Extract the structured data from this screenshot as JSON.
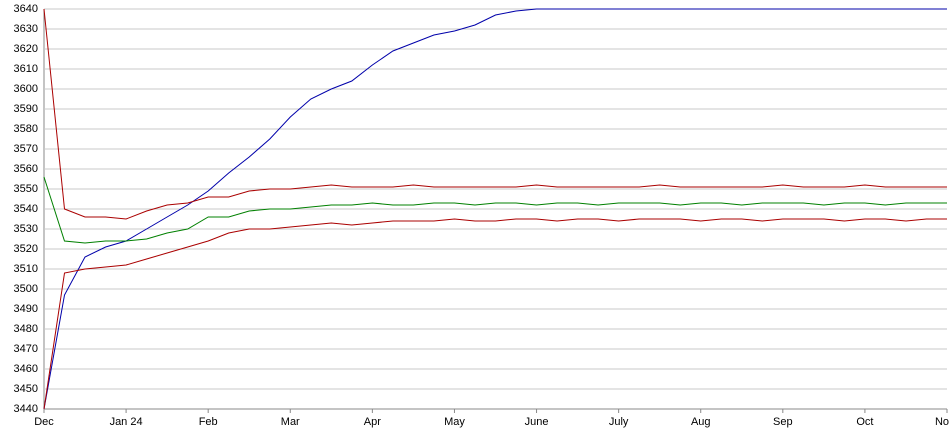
{
  "chart_data": {
    "type": "line",
    "categories": [
      "Dec",
      null,
      null,
      null,
      "Jan 24",
      null,
      null,
      null,
      "Feb",
      null,
      null,
      null,
      "Mar",
      null,
      null,
      null,
      "Apr",
      null,
      null,
      null,
      "May",
      null,
      null,
      null,
      "June",
      null,
      null,
      null,
      "July",
      null,
      null,
      null,
      "Aug",
      null,
      null,
      null,
      "Sep",
      null,
      null,
      null,
      "Oct",
      null,
      null,
      null,
      "No"
    ],
    "series": [
      {
        "color": "#0000aa",
        "values": [
          3440,
          3497,
          3516,
          3521,
          3524,
          3530,
          3536,
          3542,
          3549,
          3558,
          3566,
          3575,
          3586,
          3595,
          3600,
          3604,
          3612,
          3619,
          3623,
          3627,
          3629,
          3632,
          3637,
          3639,
          3640,
          3640,
          3640,
          3640,
          3640,
          3640,
          3640,
          3640,
          3640,
          3640,
          3640,
          3640,
          3640,
          3640,
          3640,
          3640,
          3640,
          3640,
          3640,
          3640,
          3640
        ]
      },
      {
        "color": "#aa0000",
        "values": [
          3640,
          3540,
          3536,
          3536,
          3535,
          3539,
          3542,
          3543,
          3546,
          3546,
          3549,
          3550,
          3550,
          3551,
          3552,
          3551,
          3551,
          3551,
          3552,
          3551,
          3551,
          3551,
          3551,
          3551,
          3552,
          3551,
          3551,
          3551,
          3551,
          3551,
          3552,
          3551,
          3551,
          3551,
          3551,
          3551,
          3552,
          3551,
          3551,
          3551,
          3552,
          3551,
          3551,
          3551,
          3551
        ]
      },
      {
        "color": "#008000",
        "values": [
          3556,
          3524,
          3523,
          3524,
          3524,
          3525,
          3528,
          3530,
          3536,
          3536,
          3539,
          3540,
          3540,
          3541,
          3542,
          3542,
          3543,
          3542,
          3542,
          3543,
          3543,
          3542,
          3543,
          3543,
          3542,
          3543,
          3543,
          3542,
          3543,
          3543,
          3543,
          3542,
          3543,
          3543,
          3542,
          3543,
          3543,
          3543,
          3542,
          3543,
          3543,
          3542,
          3543,
          3543,
          3543
        ]
      },
      {
        "color": "#aa0000",
        "values": [
          3440,
          3508,
          3510,
          3511,
          3512,
          3515,
          3518,
          3521,
          3524,
          3528,
          3530,
          3530,
          3531,
          3532,
          3533,
          3532,
          3533,
          3534,
          3534,
          3534,
          3535,
          3534,
          3534,
          3535,
          3535,
          3534,
          3535,
          3535,
          3534,
          3535,
          3535,
          3535,
          3534,
          3535,
          3535,
          3534,
          3535,
          3535,
          3535,
          3534,
          3535,
          3535,
          3534,
          3535,
          3535
        ]
      }
    ],
    "ylim": [
      3440,
      3640
    ],
    "yticks": [
      3440,
      3450,
      3460,
      3470,
      3480,
      3490,
      3500,
      3510,
      3520,
      3530,
      3540,
      3550,
      3560,
      3570,
      3580,
      3590,
      3600,
      3610,
      3620,
      3630,
      3640
    ],
    "grid": true
  }
}
